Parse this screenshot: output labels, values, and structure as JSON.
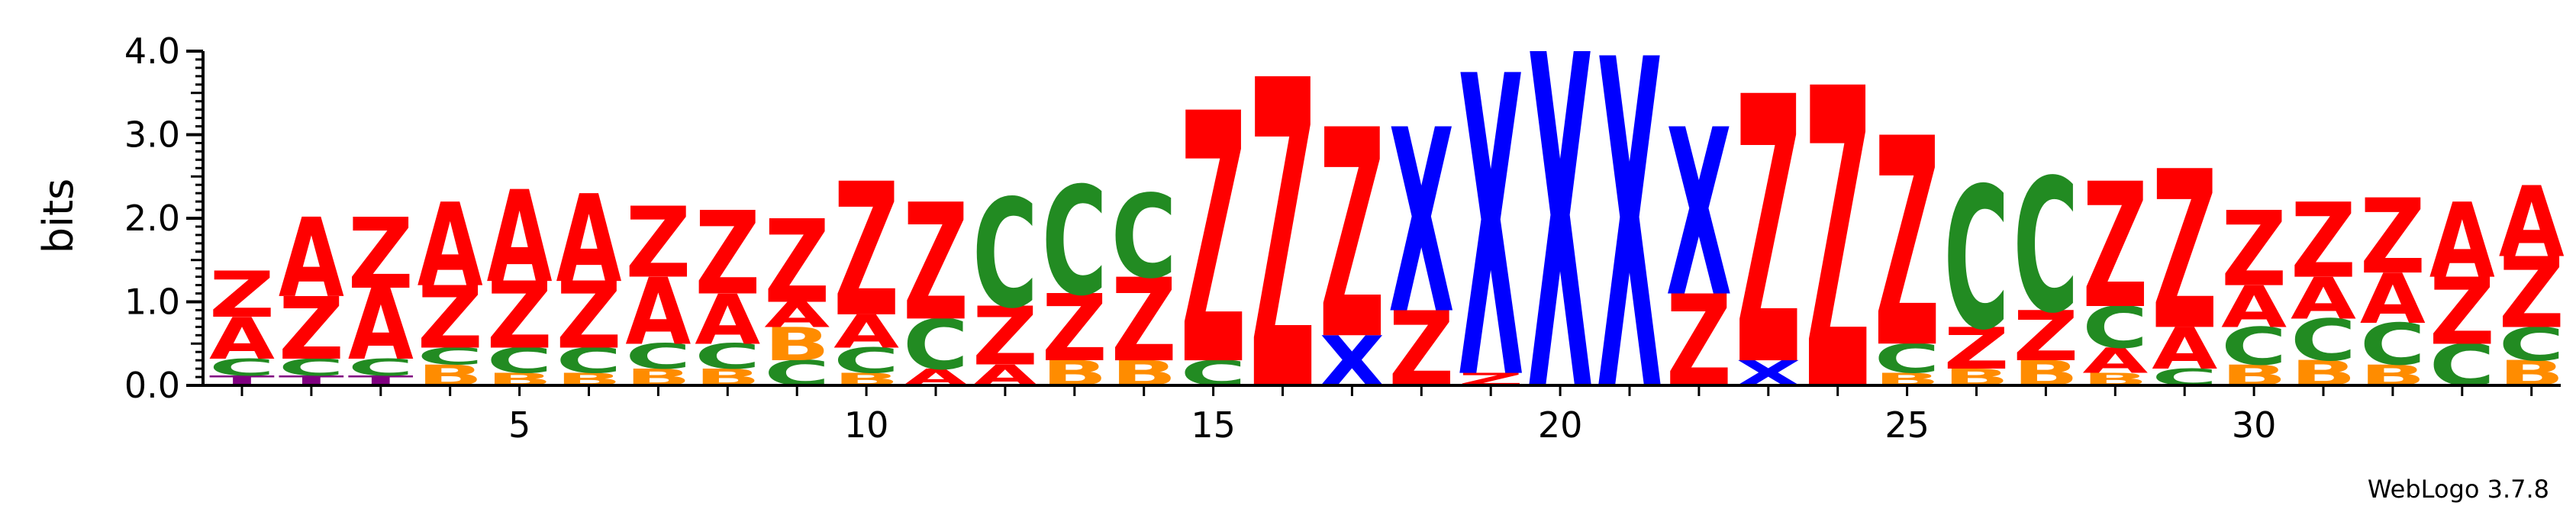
{
  "colors": {
    "A": "#ff0000",
    "Z": "#ff0000",
    "C": "#228b22",
    "B": "#ff8c00",
    "X": "#0000ff",
    "T": "#800080"
  },
  "chart_data": {
    "type": "sequence-logo",
    "ylabel": "bits",
    "ylim": [
      0,
      4.0
    ],
    "yticks": [
      "0.0",
      "1.0",
      "2.0",
      "3.0",
      "4.0"
    ],
    "xticks": [
      "5",
      "10",
      "15",
      "20",
      "25",
      "30"
    ],
    "credit": "WebLogo 3.7.8",
    "positions": [
      {
        "pos": 1,
        "stack": [
          {
            "l": "T",
            "h": 0.12
          },
          {
            "l": "C",
            "h": 0.2
          },
          {
            "l": "A",
            "h": 0.5
          },
          {
            "l": "Z",
            "h": 0.55
          }
        ]
      },
      {
        "pos": 2,
        "stack": [
          {
            "l": "T",
            "h": 0.12
          },
          {
            "l": "C",
            "h": 0.2
          },
          {
            "l": "Z",
            "h": 0.75
          },
          {
            "l": "A",
            "h": 0.95
          }
        ]
      },
      {
        "pos": 3,
        "stack": [
          {
            "l": "T",
            "h": 0.12
          },
          {
            "l": "C",
            "h": 0.2
          },
          {
            "l": "A",
            "h": 0.85
          },
          {
            "l": "Z",
            "h": 0.85
          }
        ]
      },
      {
        "pos": 4,
        "stack": [
          {
            "l": "B",
            "h": 0.25
          },
          {
            "l": "C",
            "h": 0.2
          },
          {
            "l": "Z",
            "h": 0.75
          },
          {
            "l": "A",
            "h": 1.0
          }
        ]
      },
      {
        "pos": 5,
        "stack": [
          {
            "l": "B",
            "h": 0.15
          },
          {
            "l": "C",
            "h": 0.3
          },
          {
            "l": "Z",
            "h": 0.8
          },
          {
            "l": "A",
            "h": 1.1
          }
        ]
      },
      {
        "pos": 6,
        "stack": [
          {
            "l": "B",
            "h": 0.15
          },
          {
            "l": "C",
            "h": 0.3
          },
          {
            "l": "Z",
            "h": 0.8
          },
          {
            "l": "A",
            "h": 1.05
          }
        ]
      },
      {
        "pos": 7,
        "stack": [
          {
            "l": "B",
            "h": 0.2
          },
          {
            "l": "C",
            "h": 0.3
          },
          {
            "l": "A",
            "h": 0.8
          },
          {
            "l": "Z",
            "h": 0.85
          }
        ]
      },
      {
        "pos": 8,
        "stack": [
          {
            "l": "B",
            "h": 0.2
          },
          {
            "l": "C",
            "h": 0.3
          },
          {
            "l": "A",
            "h": 0.6
          },
          {
            "l": "Z",
            "h": 1.0
          }
        ]
      },
      {
        "pos": 9,
        "stack": [
          {
            "l": "C",
            "h": 0.3
          },
          {
            "l": "B",
            "h": 0.4
          },
          {
            "l": "A",
            "h": 0.3
          },
          {
            "l": "Z",
            "h": 1.0
          }
        ]
      },
      {
        "pos": 10,
        "stack": [
          {
            "l": "B",
            "h": 0.15
          },
          {
            "l": "C",
            "h": 0.3
          },
          {
            "l": "A",
            "h": 0.4
          },
          {
            "l": "Z",
            "h": 1.6
          }
        ]
      },
      {
        "pos": 11,
        "stack": [
          {
            "l": "A",
            "h": 0.2
          },
          {
            "l": "C",
            "h": 0.6
          },
          {
            "l": "Z",
            "h": 1.4
          }
        ]
      },
      {
        "pos": 12,
        "stack": [
          {
            "l": "A",
            "h": 0.25
          },
          {
            "l": "Z",
            "h": 0.7
          },
          {
            "l": "C",
            "h": 1.3
          }
        ]
      },
      {
        "pos": 13,
        "stack": [
          {
            "l": "B",
            "h": 0.3
          },
          {
            "l": "Z",
            "h": 0.8
          },
          {
            "l": "C",
            "h": 1.3
          }
        ]
      },
      {
        "pos": 14,
        "stack": [
          {
            "l": "B",
            "h": 0.3
          },
          {
            "l": "Z",
            "h": 1.0
          },
          {
            "l": "C",
            "h": 1.0
          }
        ]
      },
      {
        "pos": 15,
        "stack": [
          {
            "l": "C",
            "h": 0.3
          },
          {
            "l": "Z",
            "h": 3.0
          }
        ]
      },
      {
        "pos": 16,
        "stack": [
          {
            "l": "Z",
            "h": 3.7
          }
        ]
      },
      {
        "pos": 17,
        "stack": [
          {
            "l": "X",
            "h": 0.6
          },
          {
            "l": "Z",
            "h": 2.5
          }
        ]
      },
      {
        "pos": 18,
        "stack": [
          {
            "l": "Z",
            "h": 0.9
          },
          {
            "l": "X",
            "h": 2.2
          }
        ]
      },
      {
        "pos": 19,
        "stack": [
          {
            "l": "Z",
            "h": 0.15
          },
          {
            "l": "X",
            "h": 3.6
          }
        ]
      },
      {
        "pos": 20,
        "stack": [
          {
            "l": "X",
            "h": 4.0
          }
        ]
      },
      {
        "pos": 21,
        "stack": [
          {
            "l": "X",
            "h": 3.95
          }
        ]
      },
      {
        "pos": 22,
        "stack": [
          {
            "l": "Z",
            "h": 1.1
          },
          {
            "l": "X",
            "h": 2.0
          }
        ]
      },
      {
        "pos": 23,
        "stack": [
          {
            "l": "X",
            "h": 0.3
          },
          {
            "l": "Z",
            "h": 3.2
          }
        ]
      },
      {
        "pos": 24,
        "stack": [
          {
            "l": "Z",
            "h": 3.6
          }
        ]
      },
      {
        "pos": 25,
        "stack": [
          {
            "l": "B",
            "h": 0.15
          },
          {
            "l": "C",
            "h": 0.35
          },
          {
            "l": "Z",
            "h": 2.5
          }
        ]
      },
      {
        "pos": 26,
        "stack": [
          {
            "l": "B",
            "h": 0.2
          },
          {
            "l": "Z",
            "h": 0.5
          },
          {
            "l": "C",
            "h": 1.7
          }
        ]
      },
      {
        "pos": 27,
        "stack": [
          {
            "l": "B",
            "h": 0.3
          },
          {
            "l": "Z",
            "h": 0.6
          },
          {
            "l": "C",
            "h": 1.6
          }
        ]
      },
      {
        "pos": 28,
        "stack": [
          {
            "l": "B",
            "h": 0.15
          },
          {
            "l": "A",
            "h": 0.3
          },
          {
            "l": "C",
            "h": 0.5
          },
          {
            "l": "Z",
            "h": 1.5
          }
        ]
      },
      {
        "pos": 29,
        "stack": [
          {
            "l": "C",
            "h": 0.2
          },
          {
            "l": "A",
            "h": 0.5
          },
          {
            "l": "Z",
            "h": 1.9
          }
        ]
      },
      {
        "pos": 30,
        "stack": [
          {
            "l": "B",
            "h": 0.25
          },
          {
            "l": "C",
            "h": 0.45
          },
          {
            "l": "A",
            "h": 0.5
          },
          {
            "l": "Z",
            "h": 0.9
          }
        ]
      },
      {
        "pos": 31,
        "stack": [
          {
            "l": "B",
            "h": 0.3
          },
          {
            "l": "C",
            "h": 0.5
          },
          {
            "l": "A",
            "h": 0.5
          },
          {
            "l": "Z",
            "h": 0.9
          }
        ]
      },
      {
        "pos": 32,
        "stack": [
          {
            "l": "B",
            "h": 0.25
          },
          {
            "l": "C",
            "h": 0.5
          },
          {
            "l": "A",
            "h": 0.6
          },
          {
            "l": "Z",
            "h": 0.9
          }
        ]
      },
      {
        "pos": 33,
        "stack": [
          {
            "l": "C",
            "h": 0.5
          },
          {
            "l": "Z",
            "h": 0.8
          },
          {
            "l": "A",
            "h": 0.9
          }
        ]
      },
      {
        "pos": 34,
        "stack": [
          {
            "l": "B",
            "h": 0.3
          },
          {
            "l": "C",
            "h": 0.4
          },
          {
            "l": "Z",
            "h": 0.85
          },
          {
            "l": "A",
            "h": 0.85
          }
        ]
      }
    ]
  }
}
